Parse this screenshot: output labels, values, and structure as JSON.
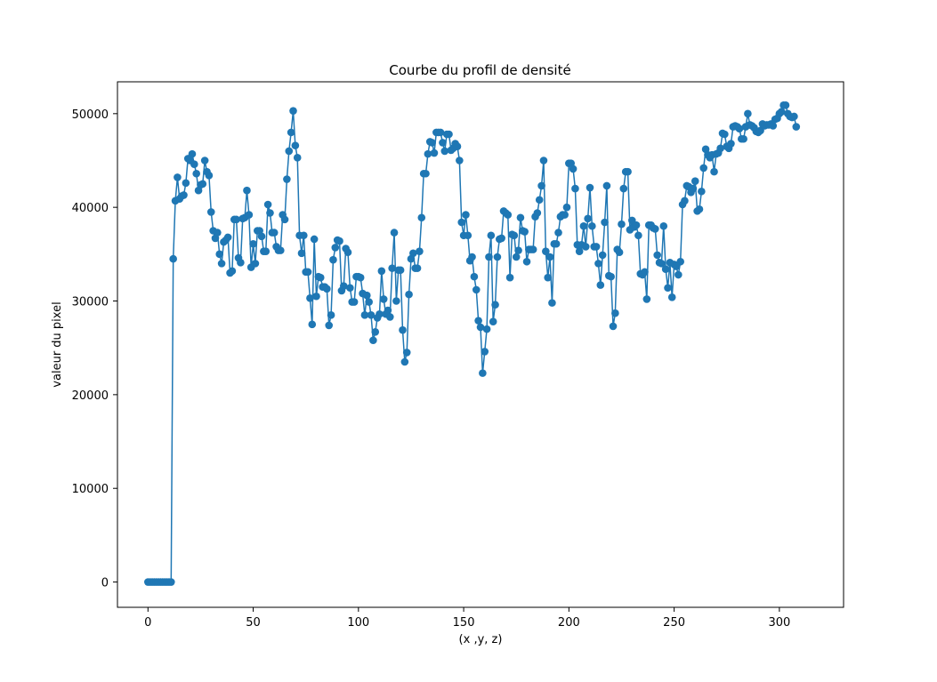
{
  "chart_data": {
    "type": "line",
    "title": "Courbe du profil de densité",
    "xlabel": "(x ,y, z)",
    "ylabel": "valeur du pixel",
    "xlim": [
      -14.5,
      330.5
    ],
    "ylim": [
      -2700,
      53400
    ],
    "xticks": [
      0,
      50,
      100,
      150,
      200,
      250,
      300
    ],
    "yticks": [
      0,
      10000,
      20000,
      30000,
      40000,
      50000
    ],
    "grid": false,
    "marker": "circle",
    "colors": {
      "series": "#1f77b4"
    },
    "series": [
      {
        "x_start": 0,
        "x_step": 1,
        "values": [
          0,
          0,
          0,
          0,
          0,
          0,
          0,
          0,
          0,
          0,
          0,
          0,
          34500,
          40700,
          43200,
          40900,
          41200,
          41300,
          42600,
          45200,
          45000,
          45700,
          44600,
          43600,
          41800,
          42400,
          42500,
          45000,
          43800,
          43400,
          39500,
          37500,
          36700,
          37300,
          35000,
          34000,
          36300,
          36500,
          36800,
          33000,
          33200,
          38700,
          38700,
          34600,
          34100,
          38800,
          38900,
          41800,
          39200,
          33600,
          36100,
          34000,
          37500,
          37500,
          36900,
          35300,
          35300,
          40300,
          39400,
          37300,
          37300,
          35800,
          35400,
          35400,
          39200,
          38700,
          43000,
          46000,
          48000,
          50300,
          46600,
          45300,
          37000,
          35100,
          37000,
          33100,
          33100,
          30300,
          27500,
          36600,
          30500,
          32600,
          32500,
          31500,
          31500,
          31300,
          27400,
          28500,
          34400,
          35700,
          36500,
          36400,
          31100,
          31600,
          35600,
          35200,
          31400,
          29900,
          29900,
          32600,
          32600,
          32500,
          30800,
          28500,
          30600,
          29900,
          28500,
          25800,
          26700,
          28200,
          28600,
          33200,
          30200,
          28600,
          29000,
          28300,
          33500,
          37300,
          30000,
          33300,
          33300,
          26900,
          23500,
          24500,
          30700,
          34500,
          35100,
          33500,
          33500,
          35300,
          38900,
          43600,
          43600,
          45700,
          47000,
          46900,
          45800,
          48000,
          48000,
          48000,
          46900,
          46000,
          47800,
          47800,
          46100,
          46300,
          46800,
          46500,
          45000,
          38400,
          37000,
          39200,
          37000,
          34300,
          34700,
          32600,
          31200,
          27900,
          27200,
          22300,
          24600,
          27000,
          34700,
          37000,
          27800,
          29600,
          34700,
          36600,
          36700,
          39600,
          39400,
          39200,
          32500,
          37100,
          37000,
          34700,
          35400,
          38900,
          37500,
          37400,
          34200,
          35500,
          35500,
          35500,
          39000,
          39400,
          40800,
          42300,
          45000,
          35300,
          32500,
          34700,
          29800,
          36100,
          36100,
          37300,
          39000,
          39200,
          39200,
          40000,
          44700,
          44700,
          44100,
          42000,
          36000,
          35300,
          36000,
          38000,
          35800,
          38800,
          42100,
          38000,
          35800,
          35800,
          34000,
          31700,
          34900,
          38400,
          42300,
          32700,
          32600,
          27300,
          28700,
          35500,
          35200,
          38200,
          42000,
          43800,
          43800,
          37600,
          38600,
          37900,
          38100,
          37000,
          32900,
          32800,
          33100,
          30200,
          38100,
          38100,
          37800,
          37700,
          34900,
          34100,
          34000,
          38000,
          33400,
          31400,
          34100,
          30400,
          33900,
          33700,
          32800,
          34200,
          40300,
          40700,
          42300,
          42200,
          41600,
          42000,
          42800,
          39600,
          39800,
          41700,
          44200,
          46200,
          45600,
          45300,
          45600,
          43800,
          45700,
          45800,
          46300,
          47900,
          47800,
          46500,
          46300,
          46800,
          48600,
          48700,
          48600,
          48400,
          47300,
          47300,
          48600,
          50000,
          48800,
          48700,
          48500,
          48100,
          48000,
          48200,
          48900,
          48700,
          48800,
          48800,
          48900,
          48700,
          49400,
          49500,
          50000,
          50200,
          50900,
          50900,
          50000,
          49700,
          49600,
          49700,
          48600
        ]
      }
    ]
  }
}
